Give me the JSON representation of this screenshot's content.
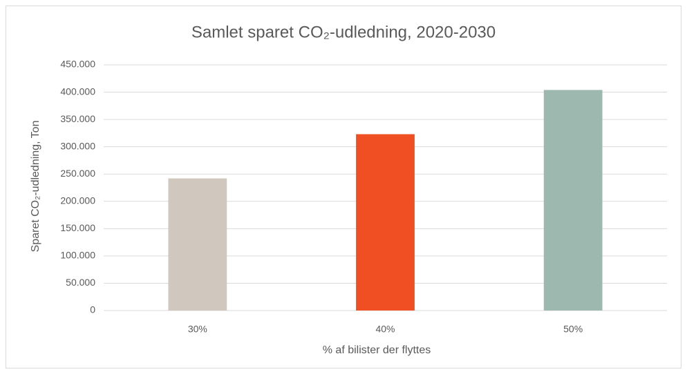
{
  "chart_data": {
    "type": "bar",
    "title": "Samlet sparet CO₂-udledning, 2020-2030",
    "x_label": "% af bilister der flyttes",
    "y_label": "Sparet CO₂-udledning, Ton",
    "categories": [
      "30%",
      "40%",
      "50%"
    ],
    "values": [
      242000,
      323000,
      404000
    ],
    "colors": [
      "#d0c8be",
      "#f04e23",
      "#9db8ae"
    ],
    "ylim": [
      0,
      450000
    ],
    "yticks": [
      0,
      {
        "value": 50000,
        "label": "50.000"
      },
      {
        "value": 100000,
        "label": "100.000"
      },
      {
        "value": 150000,
        "label": "150.000"
      },
      {
        "value": 200000,
        "label": "200.000"
      },
      {
        "value": 250000,
        "label": "250.000"
      },
      {
        "value": 300000,
        "label": "300.000"
      },
      {
        "value": 350000,
        "label": "350.000"
      },
      {
        "value": 400000,
        "label": "400.000"
      },
      {
        "value": 450000,
        "label": "450.000"
      }
    ],
    "grid": true
  }
}
